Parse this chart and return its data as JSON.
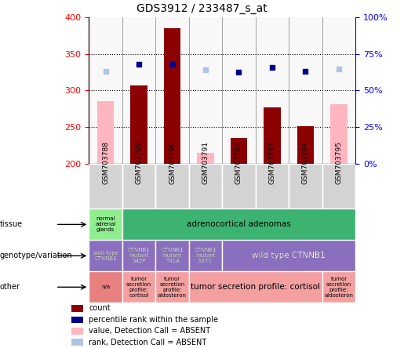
{
  "title": "GDS3912 / 233487_s_at",
  "samples": [
    "GSM703788",
    "GSM703789",
    "GSM703790",
    "GSM703791",
    "GSM703792",
    "GSM703793",
    "GSM703794",
    "GSM703795"
  ],
  "count_values": [
    null,
    307,
    385,
    null,
    235,
    277,
    251,
    null
  ],
  "count_absent": [
    285,
    null,
    null,
    215,
    null,
    null,
    null,
    281
  ],
  "rank_values": [
    null,
    336,
    336,
    null,
    325,
    332,
    326,
    null
  ],
  "rank_absent": [
    326,
    null,
    null,
    328,
    null,
    null,
    null,
    329
  ],
  "ylim_left": [
    200,
    400
  ],
  "ylim_right": [
    0,
    100
  ],
  "yticks_left": [
    200,
    250,
    300,
    350,
    400
  ],
  "yticks_right": [
    0,
    25,
    50,
    75,
    100
  ],
  "tissue_row": [
    {
      "label": "normal\nadrenal\nglands",
      "span": [
        0,
        1
      ],
      "color": "#90EE90"
    },
    {
      "label": "adrenocortical adenomas",
      "span": [
        1,
        8
      ],
      "color": "#3CB371"
    }
  ],
  "genotype_row": [
    {
      "label": "wild type\nCTNNB1",
      "span": [
        0,
        1
      ],
      "color": "#8B6FBF"
    },
    {
      "label": "CTNNB1\nmutant\nS45P",
      "span": [
        1,
        2
      ],
      "color": "#8B6FBF"
    },
    {
      "label": "CTNNB1\nmutant\nT41A",
      "span": [
        2,
        3
      ],
      "color": "#8B6FBF"
    },
    {
      "label": "CTNNB1\nmutant\nS37C",
      "span": [
        3,
        4
      ],
      "color": "#8B6FBF"
    },
    {
      "label": "wild type CTNNB1",
      "span": [
        4,
        8
      ],
      "color": "#8B6FBF"
    }
  ],
  "other_row": [
    {
      "label": "n/a",
      "span": [
        0,
        1
      ],
      "color": "#E88080"
    },
    {
      "label": "tumor\nsecretion\nprofile:\ncortisol",
      "span": [
        1,
        2
      ],
      "color": "#F4A0A0"
    },
    {
      "label": "tumor\nsecretion\nprofile:\naldosteron",
      "span": [
        2,
        3
      ],
      "color": "#F4A0A0"
    },
    {
      "label": "tumor secretion profile: cortisol",
      "span": [
        3,
        7
      ],
      "color": "#F4A0A0"
    },
    {
      "label": "tumor\nsecretion\nprofile:\naldosteron",
      "span": [
        7,
        8
      ],
      "color": "#F4A0A0"
    }
  ],
  "bar_color_present": "#8B0000",
  "bar_color_absent": "#FFB6C1",
  "rank_color_present": "#00008B",
  "rank_color_absent": "#B0C4DE",
  "legend_items": [
    {
      "color": "#8B0000",
      "label": "count"
    },
    {
      "color": "#00008B",
      "label": "percentile rank within the sample"
    },
    {
      "color": "#FFB6C1",
      "label": "value, Detection Call = ABSENT"
    },
    {
      "color": "#B0C4DE",
      "label": "rank, Detection Call = ABSENT"
    }
  ]
}
